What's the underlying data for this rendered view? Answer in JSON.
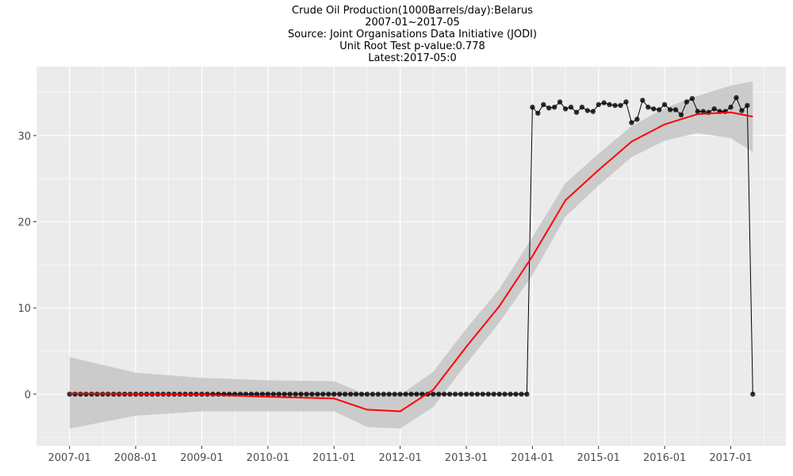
{
  "chart_data": {
    "type": "line",
    "title_lines": [
      "Crude Oil Production(1000Barrels/day):Belarus",
      "2007-01~2017-05",
      "Source: Joint Organisations Data Initiative (JODI)",
      "Unit Root Test p-value:0.778",
      "Latest:2017-05:0"
    ],
    "xlabel": "",
    "ylabel": "",
    "x_ticks": [
      "2007-01",
      "2008-01",
      "2009-01",
      "2010-01",
      "2011-01",
      "2012-01",
      "2013-01",
      "2014-01",
      "2015-01",
      "2016-01",
      "2017-01"
    ],
    "y_ticks": [
      0,
      10,
      20,
      30
    ],
    "xlim": [
      "2006-07",
      "2017-11"
    ],
    "ylim": [
      -6,
      38
    ],
    "grid": true,
    "legend": "none",
    "colors": {
      "panel": "#ebebeb",
      "grid": "#ffffff",
      "points": "#000000",
      "smooth": "#ff0000",
      "band": "#c8c8c8"
    },
    "series_values_start": "2007-01",
    "series_values": [
      0,
      0,
      0,
      0,
      0,
      0,
      0,
      0,
      0,
      0,
      0,
      0,
      0,
      0,
      0,
      0,
      0,
      0,
      0,
      0,
      0,
      0,
      0,
      0,
      0,
      0,
      0,
      0,
      0,
      0,
      0,
      0,
      0,
      0,
      0,
      0,
      0,
      0,
      0,
      0,
      0,
      0,
      0,
      0,
      0,
      0,
      0,
      0,
      0,
      0,
      0,
      0,
      0,
      0,
      0,
      0,
      0,
      0,
      0,
      0,
      0,
      0,
      0,
      0,
      0,
      0,
      0,
      0,
      0,
      0,
      0,
      0,
      0,
      0,
      0,
      0,
      0,
      0,
      0,
      0,
      0,
      0,
      0,
      0,
      33.3,
      32.6,
      33.6,
      33.2,
      33.3,
      33.9,
      33.1,
      33.3,
      32.7,
      33.3,
      32.9,
      32.8,
      33.6,
      33.8,
      33.6,
      33.5,
      33.5,
      33.9,
      31.5,
      31.9,
      34.1,
      33.3,
      33.1,
      33.0,
      33.6,
      33.0,
      33.0,
      32.4,
      33.9,
      34.3,
      32.8,
      32.8,
      32.7,
      33.1,
      32.8,
      32.8,
      33.3,
      34.4,
      32.9,
      33.5,
      0
    ],
    "smooth_trend": {
      "x": [
        "2007-01",
        "2008-01",
        "2009-01",
        "2010-01",
        "2011-01",
        "2011-07",
        "2012-01",
        "2012-07",
        "2013-01",
        "2013-07",
        "2014-01",
        "2014-07",
        "2015-01",
        "2015-07",
        "2016-01",
        "2016-07",
        "2017-01",
        "2017-05"
      ],
      "fit": [
        0.1,
        0.0,
        -0.05,
        -0.3,
        -0.5,
        -1.8,
        -2.0,
        0.5,
        5.5,
        10.2,
        16.0,
        22.5,
        26.0,
        29.3,
        31.3,
        32.5,
        32.7,
        32.2
      ],
      "lower": [
        -4.0,
        -2.5,
        -2.0,
        -2.0,
        -2.0,
        -3.8,
        -4.0,
        -1.5,
        3.5,
        8.3,
        13.8,
        20.6,
        24.2,
        27.5,
        29.4,
        30.3,
        29.7,
        28.1
      ],
      "upper": [
        4.3,
        2.5,
        1.9,
        1.6,
        1.5,
        -0.1,
        -0.1,
        2.6,
        7.6,
        12.2,
        18.2,
        24.5,
        27.9,
        31.1,
        33.2,
        34.6,
        35.8,
        36.3
      ]
    }
  }
}
